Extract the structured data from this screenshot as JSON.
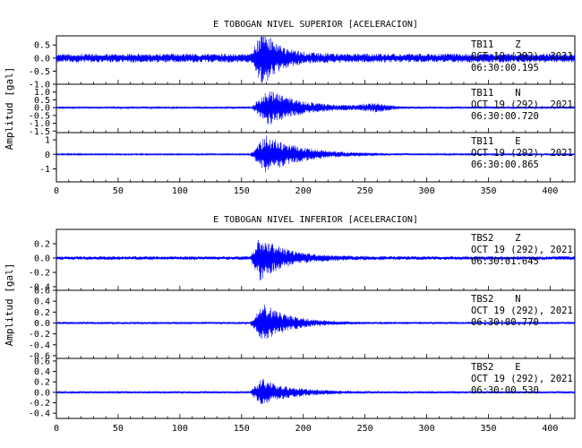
{
  "chart_data": [
    {
      "type": "line",
      "title": "E TOBOGAN NIVEL SUPERIOR [ACELERACION]",
      "ylabel": "Amplitud [gal]",
      "xlim": [
        0,
        420
      ],
      "x_ticks": [
        "0",
        "50",
        "100",
        "150",
        "200",
        "250",
        "300",
        "350",
        "400"
      ],
      "panels": [
        {
          "name": "TB11 Z",
          "station": "TB11",
          "component": "Z",
          "date": "OCT 19 (292), 2021",
          "time": "06:30:00.195",
          "ylim": [
            -1.0,
            0.85
          ],
          "y_ticks": [
            "-1.0",
            "-0.5",
            "0.0",
            "0.5"
          ],
          "noise": 0.17,
          "onset": 157,
          "peak_time": 168,
          "peak": 0.95,
          "decay": 13,
          "coda_time": 0,
          "coda_amp": 0
        },
        {
          "name": "TB11 N",
          "station": "TB11",
          "component": "N",
          "date": "OCT 19 (292), 2021",
          "time": "06:30:00.720",
          "ylim": [
            -1.6,
            1.5
          ],
          "y_ticks": [
            "-1.5",
            "-1.0",
            "-0.5",
            "0.0",
            "0.5",
            "1.0"
          ],
          "noise": 0.06,
          "onset": 158,
          "peak_time": 172,
          "peak": 1.1,
          "decay": 26,
          "coda_time": 258,
          "coda_amp": 0.2
        },
        {
          "name": "TB11 E",
          "station": "TB11",
          "component": "E",
          "date": "OCT 19 (292), 2021",
          "time": "06:30:00.865",
          "ylim": [
            -1.9,
            1.5
          ],
          "y_ticks": [
            "-1",
            "0",
            "1"
          ],
          "noise": 0.05,
          "onset": 157,
          "peak_time": 170,
          "peak": 1.3,
          "decay": 28,
          "coda_time": 0,
          "coda_amp": 0
        }
      ]
    },
    {
      "type": "line",
      "title": "E TOBOGAN NIVEL INFERIOR [ACELERACION]",
      "ylabel": "Amplitud [gal]",
      "xlim": [
        0,
        420
      ],
      "x_ticks": [
        "0",
        "50",
        "100",
        "150",
        "200",
        "250",
        "300",
        "350",
        "400"
      ],
      "panels": [
        {
          "name": "TBS2 Z",
          "station": "TBS2",
          "component": "Z",
          "date": "OCT 19 (292), 2021",
          "time": "06:30:01.645",
          "ylim": [
            -0.45,
            0.4
          ],
          "y_ticks": [
            "-0.4",
            "-0.2",
            "0.0",
            "0.2"
          ],
          "noise": 0.025,
          "onset": 157,
          "peak_time": 165,
          "peak": 0.3,
          "decay": 20,
          "coda_time": 0,
          "coda_amp": 0
        },
        {
          "name": "TBS2 N",
          "station": "TBS2",
          "component": "N",
          "date": "OCT 19 (292), 2021",
          "time": "06:30:00.770",
          "ylim": [
            -0.65,
            0.6
          ],
          "y_ticks": [
            "-0.6",
            "-0.4",
            "-0.2",
            "0.0",
            "0.2",
            "0.4",
            "0.6"
          ],
          "noise": 0.02,
          "onset": 157,
          "peak_time": 168,
          "peak": 0.35,
          "decay": 20,
          "coda_time": 0,
          "coda_amp": 0
        },
        {
          "name": "TBS2 E",
          "station": "TBS2",
          "component": "E",
          "date": "OCT 19 (292), 2021",
          "time": "06:30:00.530",
          "ylim": [
            -0.5,
            0.65
          ],
          "y_ticks": [
            "-0.4",
            "-0.2",
            "0.0",
            "0.2",
            "0.4",
            "0.6"
          ],
          "noise": 0.02,
          "onset": 157,
          "peak_time": 166,
          "peak": 0.25,
          "decay": 22,
          "coda_time": 0,
          "coda_amp": 0
        }
      ]
    }
  ],
  "colors": {
    "trace": "#0000ff",
    "axes": "#000000",
    "background": "#ffffff"
  }
}
